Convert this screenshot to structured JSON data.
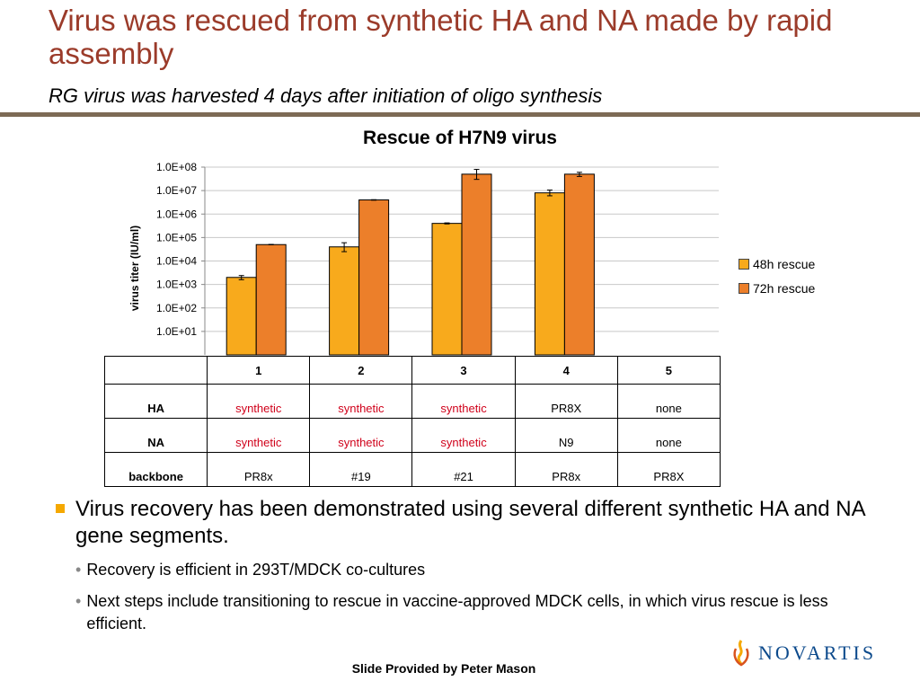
{
  "slide": {
    "title": "Virus was rescued from synthetic HA and NA made by rapid assembly",
    "subtitle": "RG virus was harvested 4 days after initiation of oligo synthesis",
    "credit": "Slide Provided by Peter Mason",
    "logo_text": "NOVARTIS",
    "accent_color": "#9b3b2a",
    "bullet_color": "#f5a800"
  },
  "chart_data": {
    "type": "bar",
    "title": "Rescue of H7N9 virus",
    "ylabel": "virus titer (IU/ml)",
    "xlabel": "",
    "yscale": "log",
    "ylim": [
      1,
      100000000
    ],
    "categories": [
      "1",
      "2",
      "3",
      "4",
      "5"
    ],
    "y_tick_labels": [
      "1.0E+01",
      "1.0E+02",
      "1.0E+03",
      "1.0E+04",
      "1.0E+05",
      "1.0E+06",
      "1.0E+07",
      "1.0E+08"
    ],
    "series": [
      {
        "name": "48h rescue",
        "color": "#f8aa1c",
        "values": [
          2000,
          40000,
          400000,
          8000000,
          null
        ],
        "error_low": [
          1600,
          25000,
          380000,
          6000000,
          null
        ],
        "error_high": [
          2400,
          60000,
          420000,
          10500000,
          null
        ]
      },
      {
        "name": "72h rescue",
        "color": "#ec7f2a",
        "values": [
          50000,
          4000000,
          50000000,
          50000000,
          null
        ],
        "error_low": [
          49000,
          3900000,
          30000000,
          40000000,
          null
        ],
        "error_high": [
          51000,
          4100000,
          80000000,
          60000000,
          null
        ]
      }
    ],
    "grid": true,
    "legend_position": "right"
  },
  "table": {
    "header": [
      "",
      "1",
      "2",
      "3",
      "4",
      "5"
    ],
    "rows": [
      {
        "label": "HA",
        "cells": [
          "synthetic",
          "synthetic",
          "synthetic",
          "PR8X",
          "none"
        ],
        "red": [
          true,
          true,
          true,
          false,
          false
        ]
      },
      {
        "label": "NA",
        "cells": [
          "synthetic",
          "synthetic",
          "synthetic",
          "N9",
          "none"
        ],
        "red": [
          true,
          true,
          true,
          false,
          false
        ]
      },
      {
        "label": "backbone",
        "cells": [
          "PR8x",
          "#19",
          "#21",
          "PR8x",
          "PR8X"
        ],
        "red": [
          false,
          false,
          false,
          false,
          false
        ]
      }
    ]
  },
  "bullets": {
    "main": "Virus recovery has been demonstrated using several different synthetic HA and NA gene segments.",
    "sub": [
      "Recovery is efficient in 293T/MDCK co-cultures",
      "Next steps include transitioning to rescue in vaccine-approved MDCK cells, in which virus rescue is less efficient."
    ]
  }
}
